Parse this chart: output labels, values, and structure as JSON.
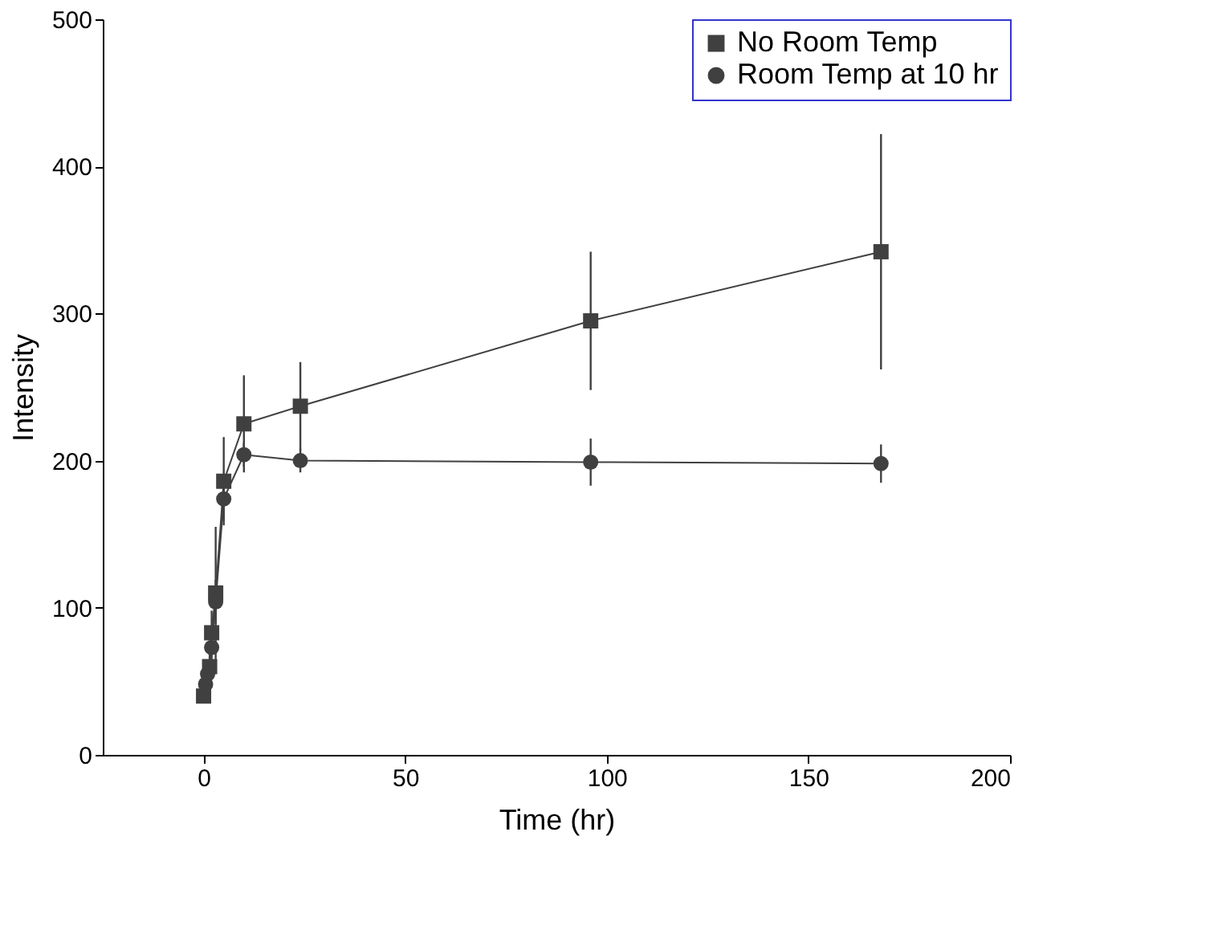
{
  "chart_data": {
    "type": "line",
    "xlabel": "Time (hr)",
    "ylabel": "Intensity",
    "xlim": [
      -25,
      200
    ],
    "xticks": [
      0,
      50,
      100,
      150,
      200
    ],
    "ylim": [
      0,
      500
    ],
    "yticks": [
      0,
      100,
      200,
      300,
      400,
      500
    ],
    "grid": false,
    "legend": "top right",
    "series": [
      {
        "name": "No Room Temp",
        "color": "#404040",
        "marker": "square",
        "x": [
          0,
          1.5,
          2,
          3,
          5,
          10,
          24,
          96,
          168
        ],
        "values": [
          40,
          60,
          83,
          110,
          186,
          225,
          237,
          295,
          342
        ],
        "errors": [
          5,
          10,
          15,
          45,
          30,
          33,
          30,
          47,
          80
        ]
      },
      {
        "name": "Room Temp at 10 hr",
        "color": "#404040",
        "marker": "circle",
        "x": [
          0.5,
          1,
          2,
          3,
          5,
          10,
          24,
          96,
          168
        ],
        "values": [
          48,
          55,
          73,
          104,
          174,
          204,
          200,
          199,
          198
        ],
        "errors": [
          5,
          8,
          10,
          15,
          15,
          8,
          8,
          16,
          13
        ]
      }
    ]
  }
}
